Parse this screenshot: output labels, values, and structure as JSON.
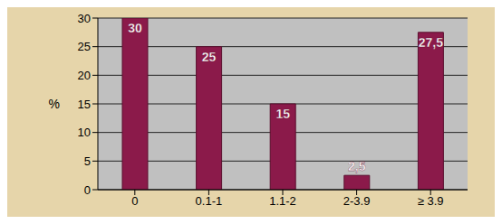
{
  "chart_data": {
    "type": "bar",
    "y_label": "%",
    "categories": [
      "0",
      "0.1-1",
      "1.1-2",
      "2-3.9",
      "≥ 3.9"
    ],
    "values": [
      30,
      25,
      15,
      2.5,
      27.5
    ],
    "value_labels": [
      "30",
      "25",
      "15",
      "2,5",
      "27,5"
    ],
    "color": "#8b1a4a",
    "ylim": [
      0,
      30
    ],
    "yticks": [
      0,
      5,
      10,
      15,
      20,
      25,
      30
    ],
    "grid": true,
    "data_labels": true
  }
}
